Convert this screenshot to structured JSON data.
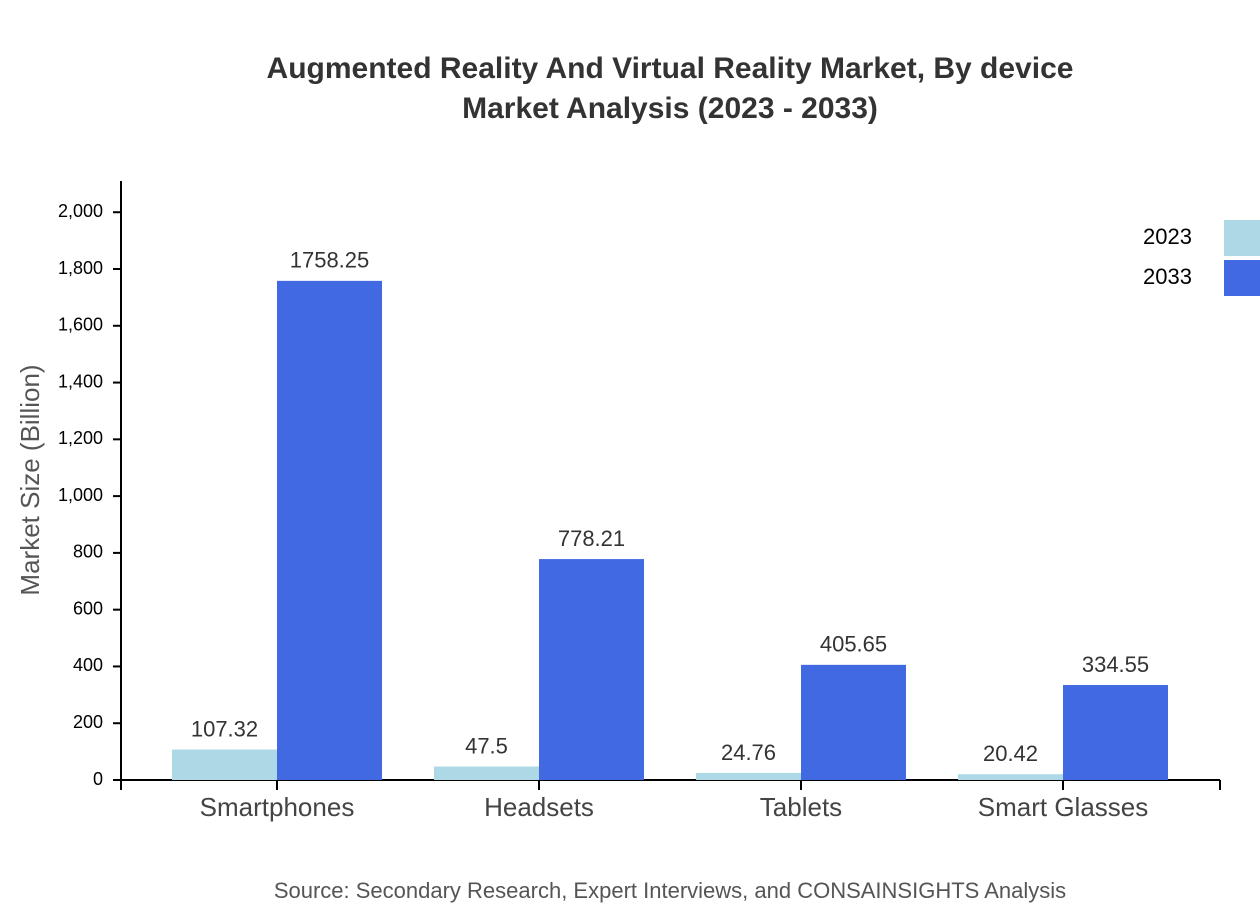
{
  "chart_data": {
    "type": "grouped-bar",
    "title": "Augmented Reality And Virtual Reality Market, By device",
    "subtitle": "Market Analysis (2023 - 2033)",
    "y_label": "Market Size (Billion)",
    "source": "Source: Secondary Research, Expert Interviews, and CONSAINSIGHTS Analysis",
    "categories": [
      "Smartphones",
      "Headsets",
      "Tablets",
      "Smart Glasses"
    ],
    "series": [
      {
        "name": "2023",
        "color": "#add8e6",
        "values": [
          107.32,
          47.5,
          24.76,
          20.42
        ]
      },
      {
        "name": "2033",
        "color": "#4169e1",
        "values": [
          1758.25,
          778.21,
          405.65,
          334.55
        ]
      }
    ],
    "ylim": [
      0,
      2110
    ],
    "yticks": [
      0,
      200,
      400,
      600,
      800,
      {
        "value": 1000,
        "label": "1,000"
      },
      {
        "value": 1200,
        "label": "1,200"
      },
      {
        "value": 1400,
        "label": "1,400"
      },
      {
        "value": 1600,
        "label": "1,600"
      },
      {
        "value": 1800,
        "label": "1,800"
      },
      {
        "value": 2000,
        "label": "2,000"
      }
    ],
    "legend": "top-right"
  }
}
